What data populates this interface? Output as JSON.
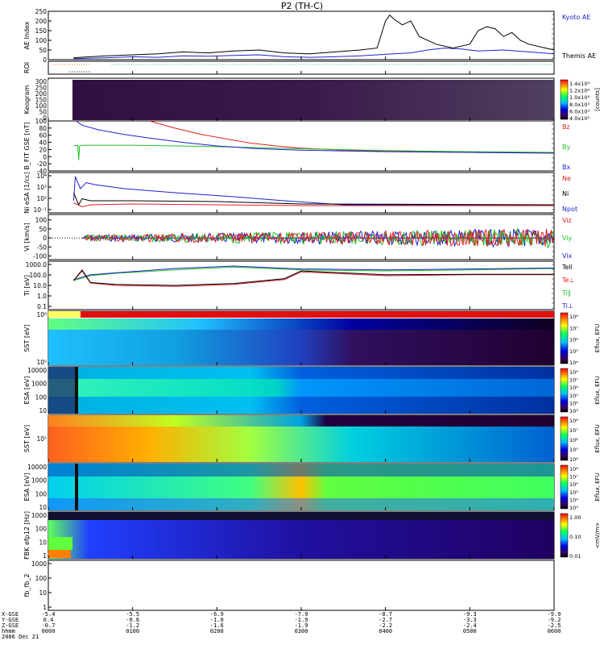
{
  "title": "P2 (TH-C)",
  "colors": {
    "blue": "#2020d0",
    "red": "#e02020",
    "green": "#20c020",
    "black": "#000000",
    "orange": "#e08020",
    "cyan": "#20c0c0"
  },
  "chart_data": [
    {
      "type": "line",
      "ylabel": "AE Index",
      "yticks": [
        "250",
        "200",
        "150",
        "100",
        "50",
        "0"
      ],
      "ylim": [
        0,
        250
      ],
      "series": [
        {
          "name": "Kyoto AE",
          "color": "#2020d0",
          "x": [
            0.3,
            0.5,
            0.7,
            1.0,
            1.3,
            1.6,
            1.9,
            2.2,
            2.5,
            2.8,
            3.1,
            3.4,
            3.7,
            3.9,
            4.1,
            4.3,
            4.5,
            4.7,
            4.9,
            5.1,
            5.4,
            5.7,
            6.0
          ],
          "y": [
            5,
            8,
            10,
            15,
            12,
            20,
            18,
            22,
            25,
            15,
            12,
            15,
            20,
            25,
            30,
            35,
            50,
            60,
            55,
            45,
            50,
            40,
            30
          ]
        },
        {
          "name": "Themis AE",
          "color": "#000000",
          "x": [
            0.3,
            0.5,
            0.7,
            1.0,
            1.3,
            1.6,
            1.9,
            2.2,
            2.5,
            2.8,
            3.1,
            3.4,
            3.7,
            3.9,
            4.0,
            4.05,
            4.1,
            4.2,
            4.3,
            4.4,
            4.6,
            4.8,
            5.0,
            5.1,
            5.2,
            5.3,
            5.4,
            5.5,
            5.6,
            5.7,
            5.9,
            6.0
          ],
          "y": [
            10,
            15,
            20,
            25,
            30,
            40,
            35,
            45,
            50,
            35,
            30,
            40,
            50,
            60,
            200,
            230,
            210,
            180,
            200,
            120,
            80,
            60,
            80,
            150,
            170,
            160,
            120,
            140,
            100,
            80,
            60,
            50
          ]
        }
      ]
    },
    {
      "type": "line",
      "ylabel": "B_FIT GSE [nT]",
      "yticks": [
        "100",
        "80",
        "60",
        "40",
        "20",
        "0",
        "-20",
        "-40"
      ],
      "ylim": [
        -40,
        100
      ],
      "series": [
        {
          "name": "Bz",
          "color": "#e02020",
          "x": [
            1.2,
            1.5,
            1.8,
            2.1,
            2.4,
            2.7,
            3.0,
            3.5,
            4.0,
            5.0,
            6.0
          ],
          "y": [
            100,
            80,
            63,
            50,
            38,
            30,
            24,
            18,
            15,
            12,
            10
          ]
        },
        {
          "name": "By",
          "color": "#20c020",
          "x": [
            0.3,
            0.35,
            0.36,
            0.37,
            0.4,
            1.0,
            2.0,
            3.0,
            4.0,
            5.0,
            6.0
          ],
          "y": [
            30,
            32,
            -10,
            30,
            32,
            32,
            28,
            22,
            17,
            14,
            12
          ]
        },
        {
          "name": "Bx",
          "color": "#2020d0",
          "x": [
            0.33,
            0.4,
            0.6,
            0.9,
            1.2,
            1.6,
            2.0,
            2.5,
            3.0,
            4.0,
            5.0,
            6.0
          ],
          "y": [
            100,
            88,
            75,
            62,
            52,
            40,
            30,
            22,
            18,
            14,
            12,
            10
          ]
        }
      ]
    },
    {
      "type": "line",
      "ylabel": "Vi [km/s]",
      "yticks": [
        "100",
        "50",
        "0",
        "-50",
        "-100"
      ],
      "ylim": [
        -120,
        130
      ],
      "series": [
        {
          "name": "Viz",
          "color": "#e02020",
          "x": [
            0.4,
            6.0
          ],
          "y": [
            0,
            0
          ]
        },
        {
          "name": "Viy",
          "color": "#20c020",
          "x": [
            0.4,
            6.0
          ],
          "y": [
            0,
            0
          ]
        },
        {
          "name": "Vix",
          "color": "#2020d0",
          "x": [
            0.4,
            6.0
          ],
          "y": [
            0,
            0
          ]
        }
      ]
    }
  ],
  "panels": [
    {
      "id": "ae",
      "label": "AE Index",
      "legend": [
        {
          "text": "Kyoto AE",
          "color": "#2020d0"
        },
        {
          "text": "Themis AE",
          "color": "#000000"
        }
      ]
    },
    {
      "id": "roi",
      "label": "ROI"
    },
    {
      "id": "keogram",
      "label": "Keogram",
      "yticks": [
        "300",
        "250",
        "200",
        "150",
        "100",
        "50",
        "0"
      ],
      "colorbar": {
        "ticks": [
          "1.4x10⁴",
          "1.2x10⁴",
          "1.0x10⁴",
          "8.0x10³",
          "6.0x10³",
          "4.0x10³"
        ],
        "unit": "[counts]"
      }
    },
    {
      "id": "bfit",
      "label": "B_FIT GSE [nT]",
      "legend": [
        {
          "text": "Bz",
          "color": "#e02020"
        },
        {
          "text": "By",
          "color": "#20c020"
        },
        {
          "text": "Bx",
          "color": "#2020d0"
        }
      ]
    },
    {
      "id": "ni",
      "label": "Ni eSA [1/cc]",
      "yticks": [
        "10⁴",
        "10³",
        "10²",
        "10⁻¹"
      ],
      "legend": [
        {
          "text": "Ne",
          "color": "#e02020"
        },
        {
          "text": "Ni",
          "color": "#000000"
        },
        {
          "text": "Npot",
          "color": "#2020d0"
        }
      ]
    },
    {
      "id": "vi",
      "label": "Vi [km/s]",
      "legend": [
        {
          "text": "Viz",
          "color": "#e02020"
        },
        {
          "text": "Viy",
          "color": "#20c020"
        },
        {
          "text": "Vix",
          "color": "#2020d0"
        }
      ]
    },
    {
      "id": "ti",
      "label": "Ti [eV]",
      "yticks": [
        "1000.0",
        "100.0",
        "10.0",
        "1.0",
        "0.1"
      ],
      "legend": [
        {
          "text": "Tell",
          "color": "#000000"
        },
        {
          "text": "Te⊥",
          "color": "#e02020"
        },
        {
          "text": "Ti∥",
          "color": "#20c020"
        },
        {
          "text": "Ti⊥",
          "color": "#2020d0"
        }
      ]
    },
    {
      "id": "sst_i",
      "label": "SST [eV]",
      "yticks": [
        "10⁶",
        "10⁵"
      ],
      "colorbar": {
        "ticks": [
          "10⁸",
          "10⁷",
          "10⁶",
          "10⁵",
          "10⁴"
        ],
        "unit": "Eflux, EFU"
      }
    },
    {
      "id": "esa_i",
      "label": "ESA [eV]",
      "yticks": [
        "10000",
        "1000",
        "100",
        "10"
      ],
      "colorbar": {
        "ticks": [
          "10⁸",
          "10⁷",
          "10⁶",
          "10⁵",
          "10⁴",
          "10³"
        ],
        "unit": "Eflux, EFU"
      }
    },
    {
      "id": "sst_e",
      "label": "SST [eV]",
      "yticks": [
        "10⁵"
      ],
      "colorbar": {
        "ticks": [
          "10⁸",
          "10⁷",
          "10⁶",
          "10⁵",
          "10⁴"
        ],
        "unit": "Eflux, EFU"
      }
    },
    {
      "id": "esa_e",
      "label": "ESA [eV]",
      "yticks": [
        "10000",
        "1000",
        "100",
        "10"
      ],
      "colorbar": {
        "ticks": [
          "10⁸",
          "10⁷",
          "10⁶",
          "10⁵",
          "10⁴",
          "10³"
        ],
        "unit": "Eflux, EFU"
      }
    },
    {
      "id": "fbk",
      "label": "FBK efp12 [Hz]",
      "yticks": [
        "1000",
        "100",
        "10",
        "1"
      ],
      "colorbar": {
        "ticks": [
          "1.00",
          "0.10",
          "0.01"
        ],
        "unit": "<mV/m>"
      }
    },
    {
      "id": "ffb",
      "label": "fb_fb_2",
      "yticks": [
        "1000",
        "100",
        "10",
        "1"
      ]
    }
  ],
  "xaxis": {
    "rows": [
      {
        "label": "X-GSE",
        "values": [
          "-5.4",
          "-5.5",
          "-6.9",
          "-7.9",
          "-8.7",
          "-9.3",
          "-9.9"
        ]
      },
      {
        "label": "Y-GSE",
        "values": [
          "0.4",
          "-0.6",
          "-1.0",
          "-1.9",
          "-2.7",
          "-3.3",
          "-9.2"
        ]
      },
      {
        "label": "Z-GSE",
        "values": [
          "-0.7",
          "-1.2",
          "-1.6",
          "-1.9",
          "-2.2",
          "-2.4",
          "-2.5"
        ]
      },
      {
        "label": "hhmm",
        "values": [
          "0000",
          "0100",
          "0200",
          "0300",
          "0400",
          "0500",
          "0600"
        ]
      }
    ],
    "date": "2006 Dec 21"
  }
}
